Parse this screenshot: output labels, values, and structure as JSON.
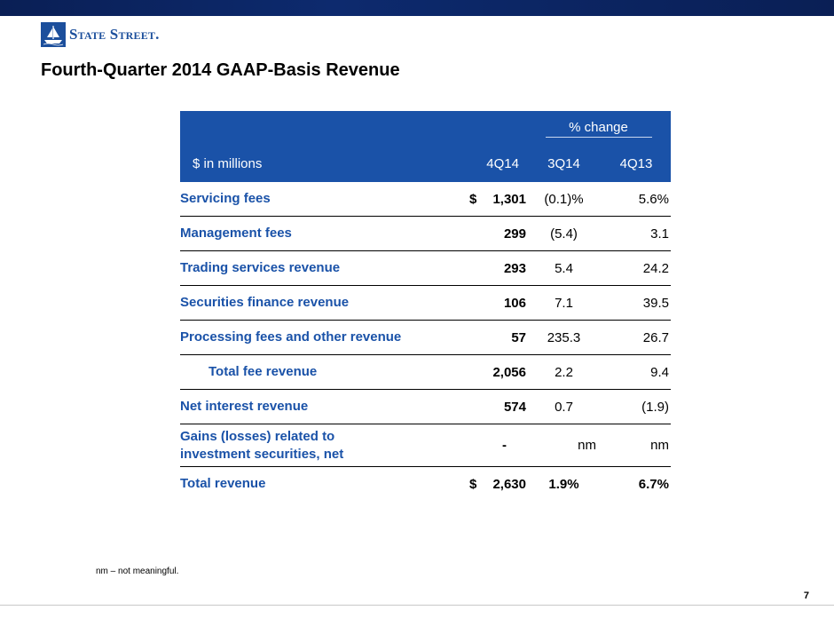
{
  "header": {
    "logo_text": "State Street."
  },
  "title": "Fourth-Quarter 2014 GAAP-Basis Revenue",
  "table": {
    "group_header": "% change",
    "columns": [
      "$ in millions",
      "4Q14",
      "3Q14",
      "4Q13"
    ],
    "rows": [
      {
        "label": "Servicing fees",
        "currency": "$",
        "value": "1,301",
        "chg_3q14": "(0.1)%",
        "chg_4q13": "5.6%"
      },
      {
        "label": "Management fees",
        "currency": "",
        "value": "299",
        "chg_3q14": "(5.4)",
        "chg_4q13": "3.1"
      },
      {
        "label": "Trading services revenue",
        "currency": "",
        "value": "293",
        "chg_3q14": "5.4",
        "chg_4q13": "24.2"
      },
      {
        "label": "Securities finance revenue",
        "currency": "",
        "value": "106",
        "chg_3q14": "7.1",
        "chg_4q13": "39.5"
      },
      {
        "label": "Processing fees and other revenue",
        "currency": "",
        "value": "57",
        "chg_3q14": "235.3",
        "chg_4q13": "26.7"
      },
      {
        "label": "Total fee revenue",
        "currency": "",
        "value": "2,056",
        "chg_3q14": "2.2",
        "chg_4q13": "9.4"
      },
      {
        "label": "Net interest revenue",
        "currency": "",
        "value": "574",
        "chg_3q14": "0.7",
        "chg_4q13": "(1.9)"
      },
      {
        "label": "Gains (losses) related to investment securities, net",
        "currency": "",
        "value": "-",
        "chg_3q14": "nm",
        "chg_4q13": "nm"
      },
      {
        "label": "Total revenue",
        "currency": "$",
        "value": "2,630",
        "chg_3q14": "1.9%",
        "chg_4q13": "6.7%"
      }
    ]
  },
  "footnote": "nm – not meaningful.",
  "page_number": "7",
  "colors": {
    "accent": "#1a52a8",
    "top_bar": "#0a1f55"
  }
}
